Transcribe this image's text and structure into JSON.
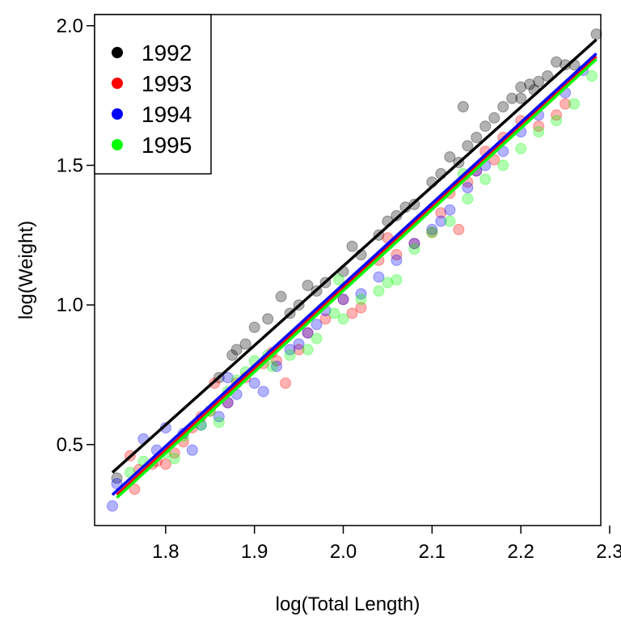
{
  "chart_data": {
    "type": "scatter",
    "title": "",
    "xlabel": "log(Total Length)",
    "ylabel": "log(Weight)",
    "xlim": [
      1.72,
      2.29
    ],
    "ylim": [
      0.21,
      2.04
    ],
    "xticks": [
      1.8,
      1.9,
      2.0,
      2.1,
      2.2,
      2.3
    ],
    "yticks": [
      0.5,
      1.0,
      1.5,
      2.0
    ],
    "xtick_labels": [
      "1.8",
      "1.9",
      "2.0",
      "2.1",
      "2.2",
      "2.3"
    ],
    "ytick_labels": [
      "0.5",
      "1.0",
      "1.5",
      "2.0"
    ],
    "grid": false,
    "legend_position": "top-left",
    "series": [
      {
        "name": "1992",
        "color": "#000000",
        "fit_line": {
          "x": [
            1.74,
            2.285
          ],
          "y": [
            0.4,
            1.95
          ]
        },
        "points": [
          [
            1.745,
            0.38
          ],
          [
            1.86,
            0.74
          ],
          [
            1.875,
            0.82
          ],
          [
            1.88,
            0.84
          ],
          [
            1.89,
            0.86
          ],
          [
            1.9,
            0.92
          ],
          [
            1.915,
            0.95
          ],
          [
            1.93,
            1.03
          ],
          [
            1.94,
            0.97
          ],
          [
            1.95,
            1.0
          ],
          [
            1.96,
            1.07
          ],
          [
            1.98,
            1.08
          ],
          [
            2.0,
            1.12
          ],
          [
            2.01,
            1.21
          ],
          [
            2.02,
            1.18
          ],
          [
            2.04,
            1.25
          ],
          [
            2.06,
            1.32
          ],
          [
            2.08,
            1.36
          ],
          [
            2.1,
            1.44
          ],
          [
            2.11,
            1.47
          ],
          [
            2.12,
            1.53
          ],
          [
            2.13,
            1.51
          ],
          [
            2.14,
            1.57
          ],
          [
            2.15,
            1.6
          ],
          [
            2.16,
            1.64
          ],
          [
            2.17,
            1.67
          ],
          [
            2.18,
            1.71
          ],
          [
            2.19,
            1.74
          ],
          [
            2.2,
            1.78
          ],
          [
            2.21,
            1.79
          ],
          [
            2.22,
            1.8
          ],
          [
            2.23,
            1.82
          ],
          [
            2.24,
            1.87
          ],
          [
            2.25,
            1.86
          ],
          [
            2.26,
            1.86
          ],
          [
            2.285,
            1.97
          ],
          [
            2.135,
            1.71
          ],
          [
            2.2,
            1.74
          ],
          [
            2.215,
            1.77
          ],
          [
            2.07,
            1.35
          ],
          [
            1.97,
            1.05
          ],
          [
            2.05,
            1.3
          ]
        ]
      },
      {
        "name": "1993",
        "color": "#ff0000",
        "fit_line": {
          "x": [
            1.745,
            2.285
          ],
          "y": [
            0.32,
            1.89
          ]
        },
        "points": [
          [
            1.76,
            0.46
          ],
          [
            1.765,
            0.34
          ],
          [
            1.77,
            0.41
          ],
          [
            1.785,
            0.43
          ],
          [
            1.79,
            0.44
          ],
          [
            1.8,
            0.43
          ],
          [
            1.81,
            0.47
          ],
          [
            1.82,
            0.51
          ],
          [
            1.83,
            0.56
          ],
          [
            1.84,
            0.6
          ],
          [
            1.85,
            0.62
          ],
          [
            1.855,
            0.72
          ],
          [
            1.87,
            0.65
          ],
          [
            1.88,
            0.72
          ],
          [
            1.89,
            0.74
          ],
          [
            1.91,
            0.79
          ],
          [
            1.92,
            0.83
          ],
          [
            1.935,
            0.72
          ],
          [
            1.95,
            0.84
          ],
          [
            1.96,
            0.9
          ],
          [
            1.98,
            0.95
          ],
          [
            2.0,
            1.02
          ],
          [
            2.01,
            0.97
          ],
          [
            2.02,
            0.99
          ],
          [
            2.04,
            1.16
          ],
          [
            2.06,
            1.18
          ],
          [
            2.08,
            1.22
          ],
          [
            2.1,
            1.26
          ],
          [
            2.11,
            1.33
          ],
          [
            2.12,
            1.4
          ],
          [
            2.14,
            1.44
          ],
          [
            2.15,
            1.48
          ],
          [
            2.16,
            1.55
          ],
          [
            2.17,
            1.52
          ],
          [
            2.18,
            1.6
          ],
          [
            2.2,
            1.66
          ],
          [
            2.22,
            1.64
          ],
          [
            2.24,
            1.68
          ],
          [
            2.25,
            1.72
          ],
          [
            2.13,
            1.27
          ],
          [
            2.05,
            1.24
          ],
          [
            1.925,
            0.8
          ]
        ]
      },
      {
        "name": "1994",
        "color": "#0000ff",
        "fit_line": {
          "x": [
            1.74,
            2.285
          ],
          "y": [
            0.32,
            1.9
          ]
        },
        "points": [
          [
            1.74,
            0.28
          ],
          [
            1.745,
            0.36
          ],
          [
            1.775,
            0.52
          ],
          [
            1.79,
            0.48
          ],
          [
            1.8,
            0.56
          ],
          [
            1.82,
            0.54
          ],
          [
            1.83,
            0.48
          ],
          [
            1.84,
            0.57
          ],
          [
            1.86,
            0.6
          ],
          [
            1.87,
            0.65
          ],
          [
            1.88,
            0.68
          ],
          [
            1.9,
            0.72
          ],
          [
            1.91,
            0.69
          ],
          [
            1.925,
            0.78
          ],
          [
            1.94,
            0.84
          ],
          [
            1.95,
            0.86
          ],
          [
            1.96,
            0.9
          ],
          [
            1.98,
            0.98
          ],
          [
            2.0,
            1.02
          ],
          [
            2.02,
            1.04
          ],
          [
            2.04,
            1.1
          ],
          [
            2.06,
            1.16
          ],
          [
            2.08,
            1.22
          ],
          [
            2.1,
            1.27
          ],
          [
            2.12,
            1.34
          ],
          [
            2.14,
            1.42
          ],
          [
            2.15,
            1.48
          ],
          [
            2.16,
            1.5
          ],
          [
            2.18,
            1.55
          ],
          [
            2.2,
            1.62
          ],
          [
            2.22,
            1.68
          ],
          [
            2.25,
            1.76
          ],
          [
            2.27,
            1.84
          ],
          [
            1.87,
            0.74
          ],
          [
            1.97,
            0.93
          ],
          [
            2.11,
            1.3
          ]
        ]
      },
      {
        "name": "1995",
        "color": "#00ff00",
        "fit_line": {
          "x": [
            1.745,
            2.285
          ],
          "y": [
            0.31,
            1.88
          ]
        },
        "points": [
          [
            1.76,
            0.4
          ],
          [
            1.775,
            0.44
          ],
          [
            1.8,
            0.47
          ],
          [
            1.81,
            0.45
          ],
          [
            1.82,
            0.53
          ],
          [
            1.84,
            0.57
          ],
          [
            1.85,
            0.62
          ],
          [
            1.86,
            0.58
          ],
          [
            1.87,
            0.69
          ],
          [
            1.88,
            0.73
          ],
          [
            1.89,
            0.76
          ],
          [
            1.9,
            0.8
          ],
          [
            1.92,
            0.78
          ],
          [
            1.94,
            0.82
          ],
          [
            1.96,
            0.84
          ],
          [
            1.97,
            0.88
          ],
          [
            1.99,
            0.97
          ],
          [
            2.0,
            0.95
          ],
          [
            2.02,
            1.02
          ],
          [
            2.05,
            1.08
          ],
          [
            2.06,
            1.09
          ],
          [
            2.08,
            1.2
          ],
          [
            2.1,
            1.26
          ],
          [
            2.12,
            1.3
          ],
          [
            2.14,
            1.38
          ],
          [
            2.16,
            1.45
          ],
          [
            2.18,
            1.5
          ],
          [
            2.2,
            1.56
          ],
          [
            2.22,
            1.62
          ],
          [
            2.24,
            1.66
          ],
          [
            2.26,
            1.72
          ],
          [
            2.28,
            1.82
          ],
          [
            1.995,
            1.09
          ],
          [
            2.135,
            1.47
          ],
          [
            2.04,
            1.05
          ],
          [
            1.915,
            0.82
          ]
        ]
      }
    ]
  }
}
